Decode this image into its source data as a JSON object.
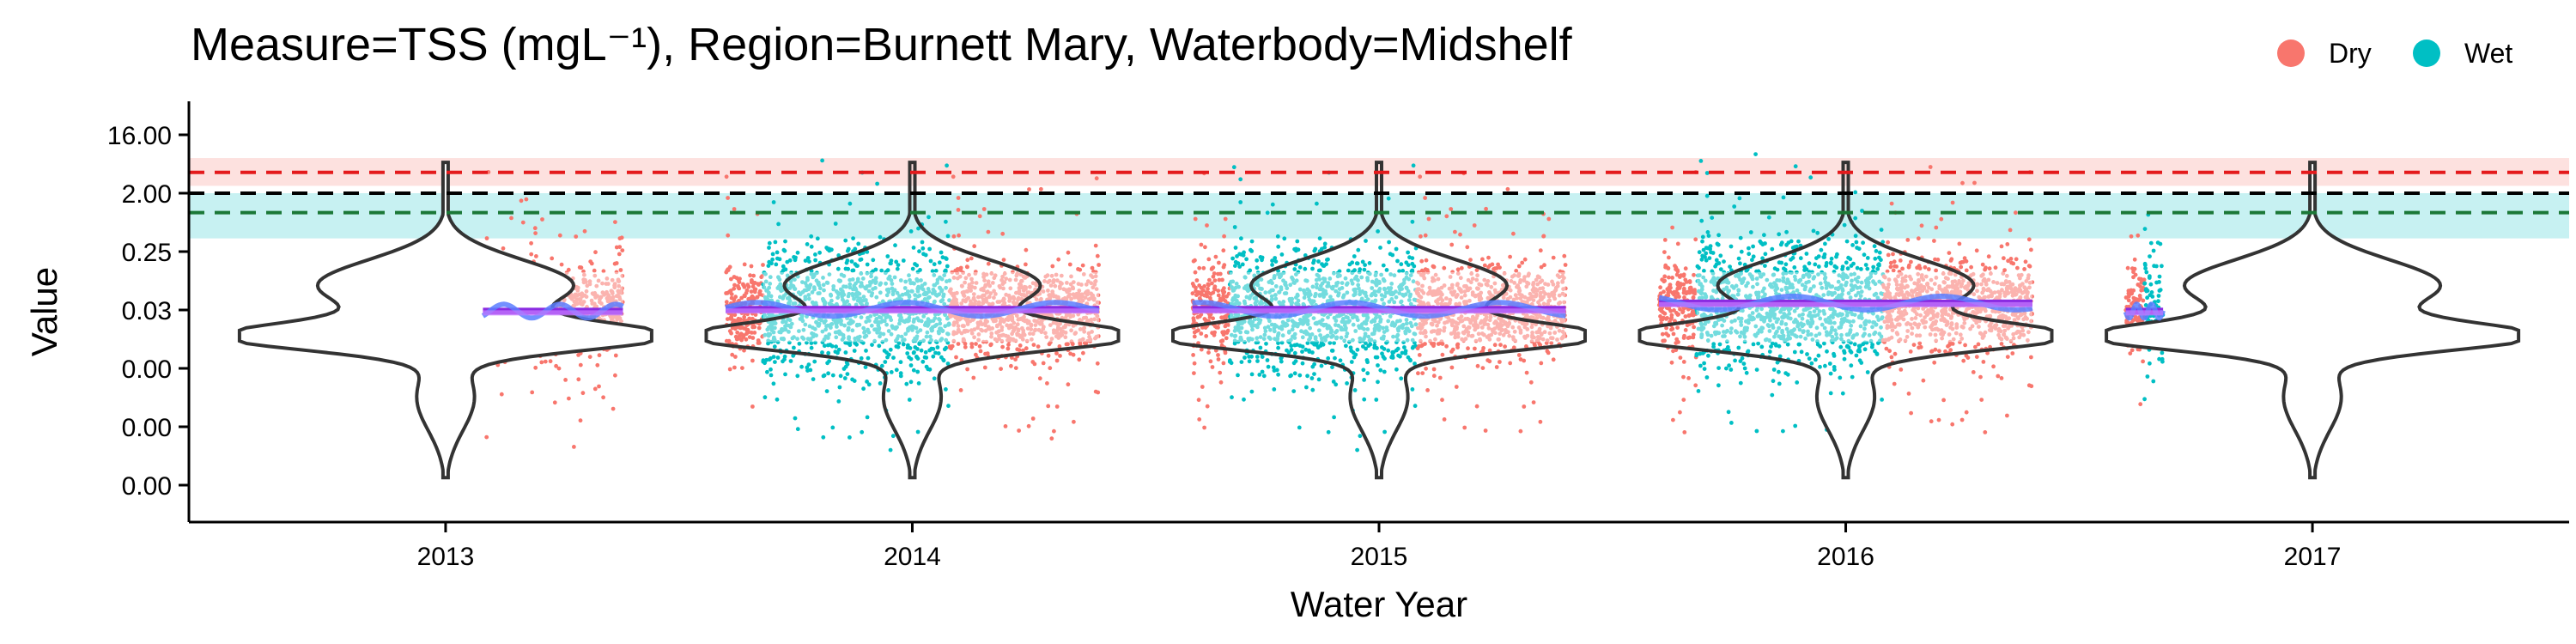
{
  "chart_data": {
    "type": "scatter",
    "title": "Measure=TSS (mgL⁻¹), Region=Burnett Mary, Waterbody=Midshelf",
    "xlabel": "Water Year",
    "ylabel": "Value",
    "x_ticks": [
      "2013",
      "2014",
      "2015",
      "2016",
      "2017"
    ],
    "y_ticks": [
      "16.00",
      "2.00",
      "0.25",
      "0.03",
      "0.00",
      "0.00",
      "0.00"
    ],
    "y_scale": "log2",
    "y_tick_values": [
      16,
      2,
      0.25,
      0.03125,
      0.0039,
      0.00049,
      6.1e-05
    ],
    "grid": false,
    "legend": {
      "placement": "top-right",
      "entries": [
        {
          "name": "Dry",
          "color": "#F8766D"
        },
        {
          "name": "Wet",
          "color": "#00BFC4"
        }
      ]
    },
    "reference_lines": [
      {
        "value": 4.2,
        "color": "#E41A1C",
        "band": [
          2.6,
          7.0
        ],
        "band_color": "#F8766D"
      },
      {
        "value": 2.0,
        "color": "#000000"
      },
      {
        "value": 1.0,
        "color": "#1B7837",
        "band": [
          0.4,
          2.0
        ],
        "band_color": "#00BFC4"
      }
    ],
    "seasons": [
      {
        "year": 2013,
        "start": 2013.08,
        "end": 2013.38,
        "segments": [
          {
            "season": "Dry",
            "start": 2013.08,
            "end": 2013.38
          }
        ],
        "mean_value": 0.03
      },
      {
        "year": 2014,
        "start": 2013.6,
        "end": 2014.4,
        "segments": [
          {
            "season": "Dry",
            "start": 2013.6,
            "end": 2013.68
          },
          {
            "season": "Wet",
            "start": 2013.68,
            "end": 2014.08
          },
          {
            "season": "Dry",
            "start": 2014.08,
            "end": 2014.4
          }
        ],
        "mean_value": 0.032
      },
      {
        "year": 2015,
        "start": 2014.6,
        "end": 2015.4,
        "segments": [
          {
            "season": "Dry",
            "start": 2014.6,
            "end": 2014.68
          },
          {
            "season": "Wet",
            "start": 2014.68,
            "end": 2015.08
          },
          {
            "season": "Dry",
            "start": 2015.08,
            "end": 2015.4
          }
        ],
        "mean_value": 0.032
      },
      {
        "year": 2016,
        "start": 2015.6,
        "end": 2016.4,
        "segments": [
          {
            "season": "Dry",
            "start": 2015.6,
            "end": 2015.68
          },
          {
            "season": "Wet",
            "start": 2015.68,
            "end": 2016.08
          },
          {
            "season": "Dry",
            "start": 2016.08,
            "end": 2016.4
          }
        ],
        "mean_value": 0.04
      },
      {
        "year": 2017,
        "start": 2016.6,
        "end": 2016.68,
        "segments": [
          {
            "season": "Dry",
            "start": 2016.6,
            "end": 2016.64
          },
          {
            "season": "Wet",
            "start": 2016.64,
            "end": 2016.68
          }
        ],
        "mean_value": 0.03
      }
    ],
    "violins": [
      {
        "year": 2013,
        "center": 2013.0,
        "mode": 0.012
      },
      {
        "year": 2014,
        "center": 2014.0,
        "mode": 0.012
      },
      {
        "year": 2015,
        "center": 2015.0,
        "mode": 0.012
      },
      {
        "year": 2016,
        "center": 2016.0,
        "mode": 0.012
      },
      {
        "year": 2017,
        "center": 2017.0,
        "mode": 0.012
      }
    ],
    "xlim": [
      2012.45,
      2017.55
    ],
    "trend_line_color": "#5B7CFF",
    "mean_line_color": "#C77CFF"
  }
}
